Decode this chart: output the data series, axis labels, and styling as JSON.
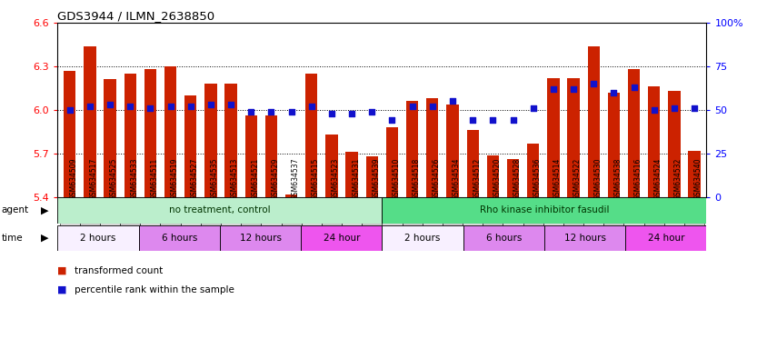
{
  "title": "GDS3944 / ILMN_2638850",
  "samples": [
    "GSM634509",
    "GSM634517",
    "GSM634525",
    "GSM634533",
    "GSM634511",
    "GSM634519",
    "GSM634527",
    "GSM634535",
    "GSM634513",
    "GSM634521",
    "GSM634529",
    "GSM634537",
    "GSM634515",
    "GSM634523",
    "GSM634531",
    "GSM634539",
    "GSM634510",
    "GSM634518",
    "GSM634526",
    "GSM634534",
    "GSM634512",
    "GSM634520",
    "GSM634528",
    "GSM634536",
    "GSM634514",
    "GSM634522",
    "GSM634530",
    "GSM634538",
    "GSM634516",
    "GSM634524",
    "GSM634532",
    "GSM634540"
  ],
  "bar_values": [
    6.27,
    6.44,
    6.21,
    6.25,
    6.28,
    6.3,
    6.1,
    6.18,
    6.18,
    5.96,
    5.96,
    5.42,
    6.25,
    5.83,
    5.71,
    5.68,
    5.88,
    6.06,
    6.08,
    6.04,
    5.86,
    5.69,
    5.66,
    5.77,
    6.22,
    6.22,
    6.44,
    6.12,
    6.28,
    6.16,
    6.13,
    5.72
  ],
  "percentile_values": [
    50,
    52,
    53,
    52,
    51,
    52,
    52,
    53,
    53,
    49,
    49,
    49,
    52,
    48,
    48,
    49,
    44,
    52,
    52,
    55,
    44,
    44,
    44,
    51,
    62,
    62,
    65,
    60,
    63,
    50,
    51,
    51
  ],
  "ylim_left": [
    5.4,
    6.6
  ],
  "ylim_right": [
    0,
    100
  ],
  "bar_color": "#cc2200",
  "dot_color": "#1111cc",
  "yticks_left": [
    5.4,
    5.7,
    6.0,
    6.3,
    6.6
  ],
  "yticks_right": [
    0,
    25,
    50,
    75,
    100
  ],
  "ytick_labels_right": [
    "0",
    "25",
    "50",
    "75",
    "100%"
  ],
  "agent_groups": [
    {
      "label": "no treatment, control",
      "start": 0,
      "end": 16,
      "color": "#bbeecc"
    },
    {
      "label": "Rho kinase inhibitor fasudil",
      "start": 16,
      "end": 32,
      "color": "#55dd88"
    }
  ],
  "time_groups": [
    {
      "label": "2 hours",
      "start": 0,
      "end": 4,
      "color": "#f8f0ff"
    },
    {
      "label": "6 hours",
      "start": 4,
      "end": 8,
      "color": "#dd88ee"
    },
    {
      "label": "12 hours",
      "start": 8,
      "end": 12,
      "color": "#dd88ee"
    },
    {
      "label": "24 hour",
      "start": 12,
      "end": 16,
      "color": "#ee55ee"
    },
    {
      "label": "2 hours",
      "start": 16,
      "end": 20,
      "color": "#f8f0ff"
    },
    {
      "label": "6 hours",
      "start": 20,
      "end": 24,
      "color": "#dd88ee"
    },
    {
      "label": "12 hours",
      "start": 24,
      "end": 28,
      "color": "#dd88ee"
    },
    {
      "label": "24 hour",
      "start": 28,
      "end": 32,
      "color": "#ee55ee"
    }
  ],
  "legend_items": [
    {
      "label": "transformed count",
      "color": "#cc2200"
    },
    {
      "label": "percentile rank within the sample",
      "color": "#1111cc"
    }
  ]
}
